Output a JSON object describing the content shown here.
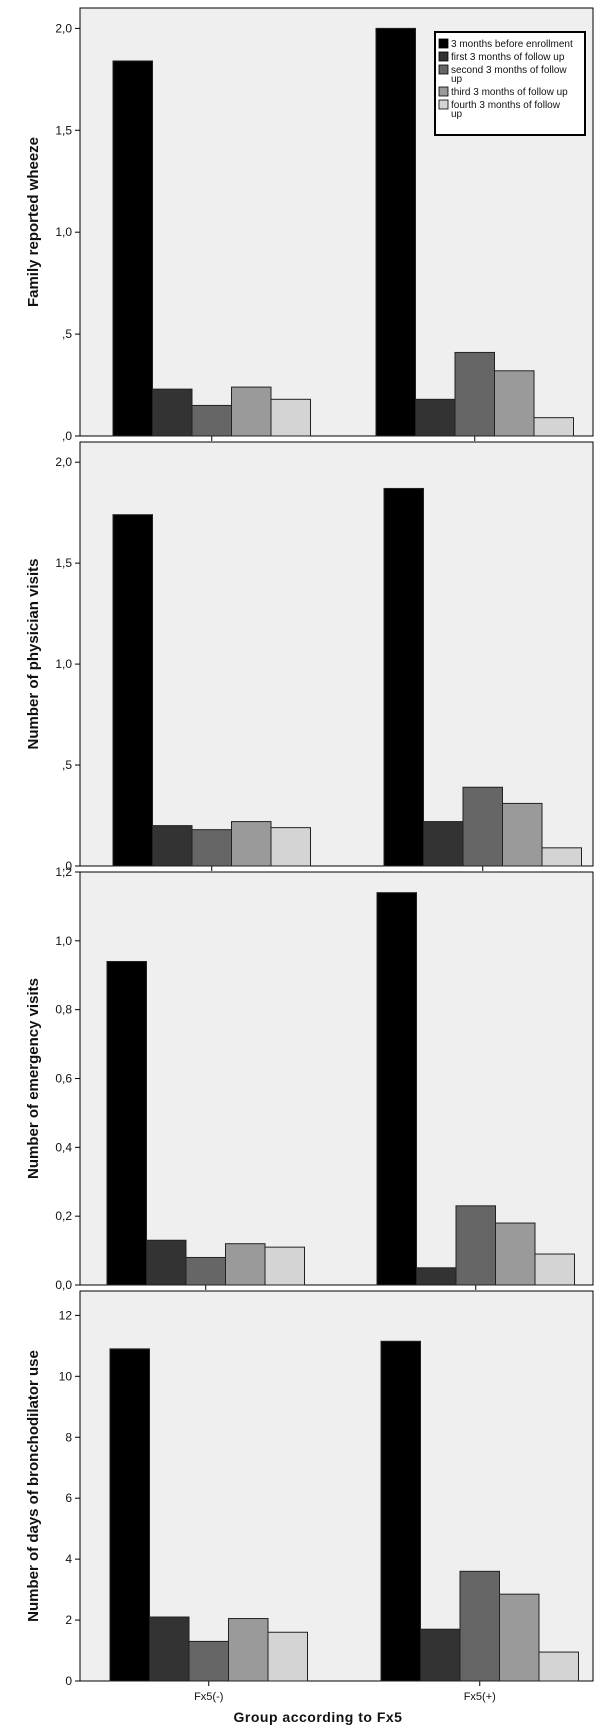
{
  "legend": {
    "entries": [
      {
        "label": "3 months before enrollment",
        "label_lines": [
          "3 months before enrollment"
        ],
        "color": "#000000"
      },
      {
        "label": "first 3 months of follow up",
        "label_lines": [
          "first 3 months of follow up"
        ],
        "color": "#333333"
      },
      {
        "label": "second 3 months of follow up",
        "label_lines": [
          "second 3 months of follow",
          "up"
        ],
        "color": "#666666"
      },
      {
        "label": "third 3 months of follow up",
        "label_lines": [
          "third 3 months of follow up"
        ],
        "color": "#9a9a9a"
      },
      {
        "label": "fourth 3 months of follow up",
        "label_lines": [
          "fourth 3 months of follow",
          "up"
        ],
        "color": "#d4d4d4"
      }
    ]
  },
  "colors": {
    "panel_background": "#efefef",
    "bar_stroke": "#222222",
    "series": [
      "#000000",
      "#333333",
      "#666666",
      "#9a9a9a",
      "#d4d4d4"
    ]
  },
  "xaxis": {
    "title": "Group according to Fx5",
    "categories": [
      "Fx5(-)",
      "Fx5(+)"
    ]
  },
  "chart_data": [
    {
      "type": "bar",
      "ylabel": "Family reported wheeze",
      "xlabel": "",
      "categories": [
        "Fx5(-)",
        "Fx5(+)"
      ],
      "show_category_labels": false,
      "ylim": [
        0,
        2.1
      ],
      "yticks": [
        0,
        0.5,
        1,
        1.5,
        2
      ],
      "ytick_labels": [
        ",0",
        ",5",
        "1,0",
        "1,5",
        "2,0"
      ],
      "legend": "top-right",
      "series": [
        {
          "name": "3 months before enrollment",
          "values": [
            1.84,
            2.0
          ]
        },
        {
          "name": "first 3 months of follow up",
          "values": [
            0.23,
            0.18
          ]
        },
        {
          "name": "second 3 months of follow up",
          "values": [
            0.15,
            0.41
          ]
        },
        {
          "name": "third 3 months of follow up",
          "values": [
            0.24,
            0.32
          ]
        },
        {
          "name": "fourth 3 months of follow up",
          "values": [
            0.18,
            0.09
          ]
        }
      ]
    },
    {
      "type": "bar",
      "ylabel": "Number of physician visits",
      "xlabel": "",
      "categories": [
        "Fx5(-)",
        "Fx5(+)"
      ],
      "show_category_labels": false,
      "ylim": [
        0,
        2.1
      ],
      "yticks": [
        0,
        0.5,
        1,
        1.5,
        2
      ],
      "ytick_labels": [
        ",0",
        ",5",
        "1,0",
        "1,5",
        "2,0"
      ],
      "series": [
        {
          "name": "3 months before enrollment",
          "values": [
            1.74,
            1.87
          ]
        },
        {
          "name": "first 3 months of follow up",
          "values": [
            0.2,
            0.22
          ]
        },
        {
          "name": "second 3 months of follow up",
          "values": [
            0.18,
            0.39
          ]
        },
        {
          "name": "third 3 months of follow up",
          "values": [
            0.22,
            0.31
          ]
        },
        {
          "name": "fourth 3 months of follow up",
          "values": [
            0.19,
            0.09
          ]
        }
      ]
    },
    {
      "type": "bar",
      "ylabel": "Number of emergency visits",
      "xlabel": "",
      "categories": [
        "Fx5(-)",
        "Fx5(+)"
      ],
      "show_category_labels": false,
      "ylim": [
        0,
        1.2
      ],
      "yticks": [
        0,
        0.2,
        0.4,
        0.6,
        0.8,
        1.0,
        1.2
      ],
      "ytick_labels": [
        "0,0",
        "0,2",
        "0,4",
        "0,6",
        "0,8",
        "1,0",
        "1,2"
      ],
      "series": [
        {
          "name": "3 months before enrollment",
          "values": [
            0.94,
            1.14
          ]
        },
        {
          "name": "first 3 months of follow up",
          "values": [
            0.13,
            0.05
          ]
        },
        {
          "name": "second 3 months of follow up",
          "values": [
            0.08,
            0.23
          ]
        },
        {
          "name": "third 3 months of follow up",
          "values": [
            0.12,
            0.18
          ]
        },
        {
          "name": "fourth 3 months of follow up",
          "values": [
            0.11,
            0.09
          ]
        }
      ]
    },
    {
      "type": "bar",
      "ylabel": "Number of days of bronchodilator use",
      "xlabel": "Group according to Fx5",
      "categories": [
        "Fx5(-)",
        "Fx5(+)"
      ],
      "show_category_labels": true,
      "ylim": [
        0,
        12.8
      ],
      "yticks": [
        0,
        2,
        4,
        6,
        8,
        10,
        12
      ],
      "ytick_labels": [
        "0",
        "2",
        "4",
        "6",
        "8",
        "10",
        "12"
      ],
      "series": [
        {
          "name": "3 months before enrollment",
          "values": [
            10.9,
            11.15
          ]
        },
        {
          "name": "first 3 months of follow up",
          "values": [
            2.1,
            1.7
          ]
        },
        {
          "name": "second 3 months of follow up",
          "values": [
            1.3,
            3.6
          ]
        },
        {
          "name": "third 3 months of follow up",
          "values": [
            2.05,
            2.85
          ]
        },
        {
          "name": "fourth 3 months of follow up",
          "values": [
            1.6,
            0.95
          ]
        }
      ]
    }
  ]
}
